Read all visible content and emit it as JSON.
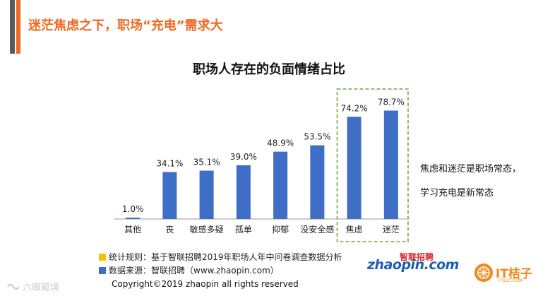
{
  "slide": {
    "title": "迷茫焦虑之下，职场“充电”需求大"
  },
  "colors": {
    "accent": "#ee6a22",
    "bar": "#3f6ec6",
    "highlight_border": "#6aab3d",
    "legend_yellow": "#f5c400",
    "legend_blue": "#3f6ec6"
  },
  "chart_data": {
    "type": "bar",
    "title": "职场人存在的负面情绪占比",
    "categories": [
      "其他",
      "丧",
      "敏感多疑",
      "孤单",
      "抑郁",
      "没安全感",
      "焦虑",
      "迷茫"
    ],
    "values": [
      1.0,
      34.1,
      35.1,
      39.0,
      48.9,
      53.5,
      74.2,
      78.7
    ],
    "value_labels": [
      "1.0%",
      "34.1%",
      "35.1%",
      "39.0%",
      "48.9%",
      "53.5%",
      "74.2%",
      "78.7%"
    ],
    "unit": "%",
    "ylim": [
      0,
      100
    ],
    "highlighted": [
      "焦虑",
      "迷茫"
    ],
    "grid": false,
    "xlabel": "",
    "ylabel": ""
  },
  "notes": {
    "line1": "焦虑和迷茫是职场常态，",
    "line2": "学习充电是新常态"
  },
  "legend": {
    "rule": "统计规则：基于智联招聘2019年职场人年中问卷调查数据分析",
    "source": "数据来源：智联招聘（www.zhaopin.com）"
  },
  "copyright": "Copyright©2019 zhaopin all rights reserved",
  "logos": {
    "zhaopin_en": "zhaopin.com",
    "zhaopin_cn": "智联招聘",
    "it_brand": "IT桔子",
    "it_domain": "ITJUZI.COM"
  },
  "watermark": "六眼窥境"
}
